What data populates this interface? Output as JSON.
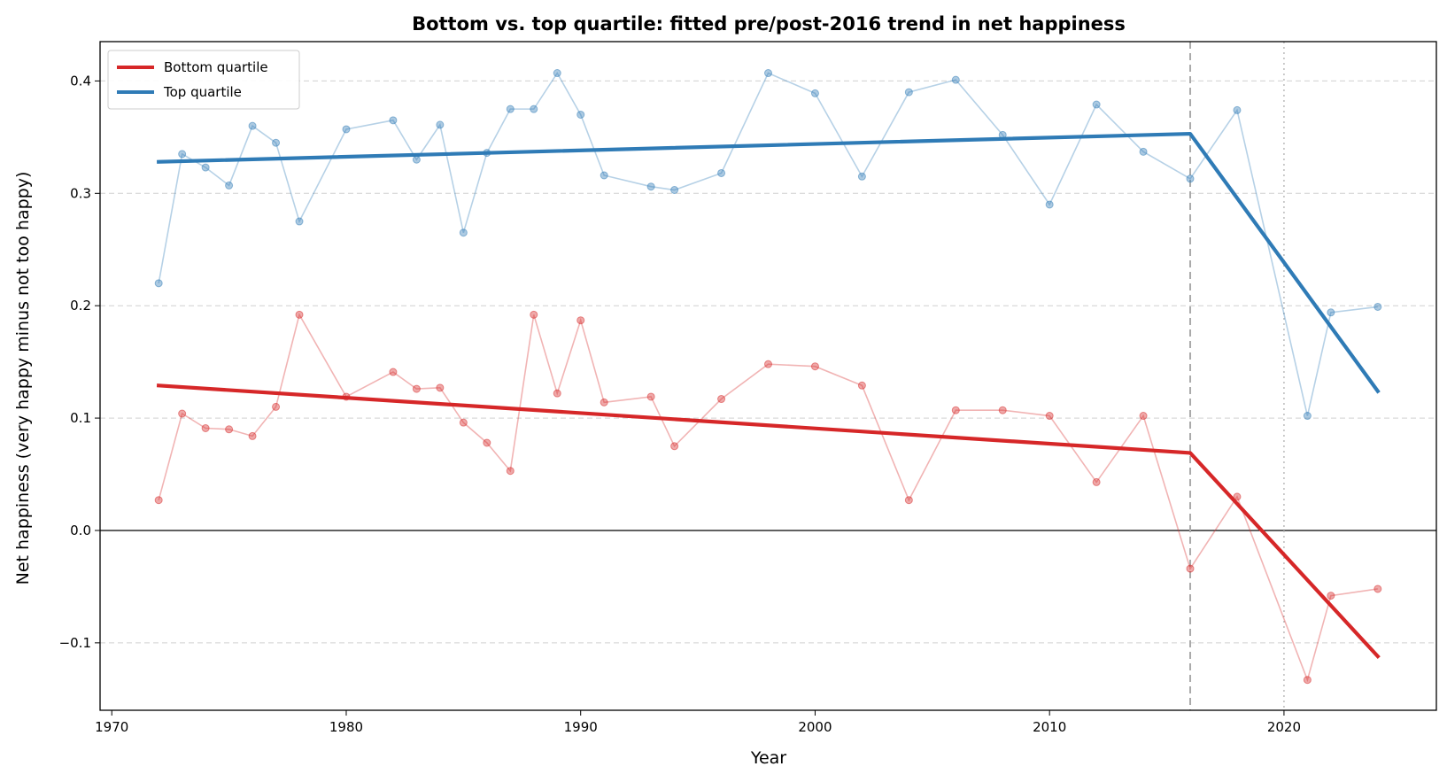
{
  "chart_data": {
    "type": "line",
    "title": "Bottom vs. top quartile: fitted pre/post-2016 trend in net happiness",
    "xlabel": "Year",
    "ylabel": "Net happiness (very happy minus not too happy)",
    "xlim": [
      1969.5,
      2026.5
    ],
    "ylim": [
      -0.16,
      0.435
    ],
    "xticks": [
      1970,
      1980,
      1990,
      2000,
      2010,
      2020
    ],
    "yticks": [
      -0.1,
      0.0,
      0.1,
      0.2,
      0.3,
      0.4
    ],
    "ytick_labels": [
      "−0.1",
      "0.0",
      "0.1",
      "0.2",
      "0.3",
      "0.4"
    ],
    "grid": "y-dashed",
    "legend_position": "top-left",
    "reference_lines": {
      "zero_line": 0,
      "break_year": 2016,
      "covid_year": 2020
    },
    "years": [
      1972,
      1973,
      1974,
      1975,
      1976,
      1977,
      1978,
      1980,
      1982,
      1983,
      1984,
      1985,
      1986,
      1987,
      1988,
      1989,
      1990,
      1991,
      1993,
      1994,
      1996,
      1998,
      2000,
      2002,
      2004,
      2006,
      2008,
      2010,
      2012,
      2014,
      2016,
      2018,
      2021,
      2022,
      2024
    ],
    "series": [
      {
        "name": "Bottom quartile",
        "color": "#d62728",
        "observed": [
          0.027,
          0.104,
          0.091,
          0.09,
          0.084,
          0.11,
          0.192,
          0.119,
          0.141,
          0.126,
          0.127,
          0.096,
          0.078,
          0.053,
          0.192,
          0.122,
          0.187,
          0.114,
          0.119,
          0.075,
          0.117,
          0.148,
          0.146,
          0.129,
          0.027,
          0.107,
          0.107,
          0.102,
          0.043,
          0.102,
          -0.034,
          0.03,
          -0.133,
          -0.058,
          -0.052
        ],
        "fit": [
          [
            1972,
            0.129
          ],
          [
            2016,
            0.069
          ],
          [
            2024,
            -0.112
          ]
        ]
      },
      {
        "name": "Top quartile",
        "color": "#2f7bb6",
        "observed": [
          0.22,
          0.335,
          0.323,
          0.307,
          0.36,
          0.345,
          0.275,
          0.357,
          0.365,
          0.33,
          0.361,
          0.265,
          0.336,
          0.375,
          0.375,
          0.407,
          0.37,
          0.316,
          0.306,
          0.303,
          0.318,
          0.407,
          0.389,
          0.315,
          0.39,
          0.401,
          0.352,
          0.29,
          0.379,
          0.337,
          0.313,
          0.374,
          0.102,
          0.194,
          0.199
        ],
        "fit": [
          [
            1972,
            0.328
          ],
          [
            2016,
            0.353
          ],
          [
            2024,
            0.124
          ]
        ]
      }
    ]
  }
}
